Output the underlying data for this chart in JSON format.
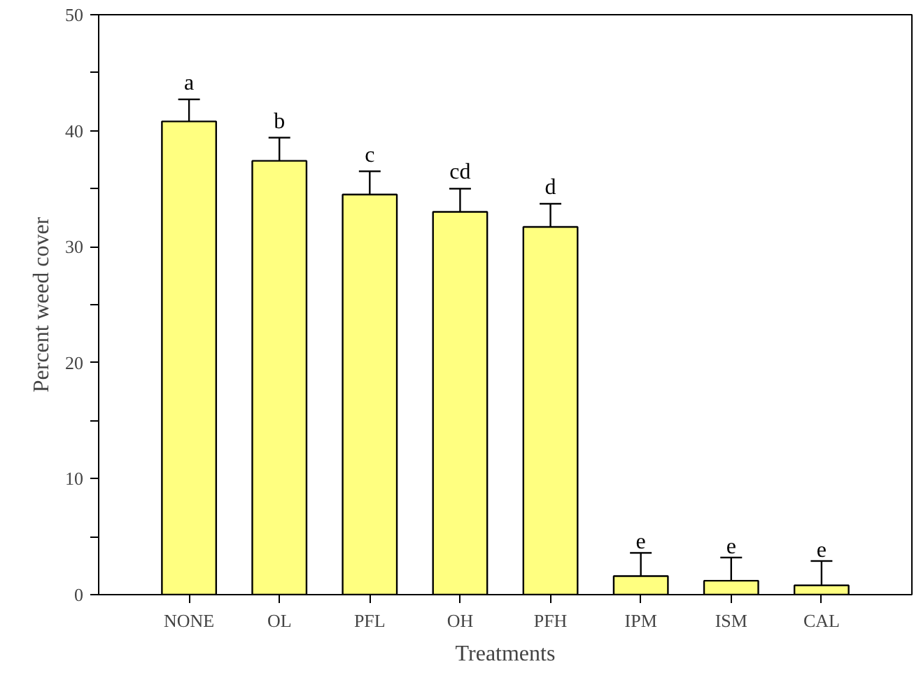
{
  "chart_data": {
    "type": "bar",
    "xlabel": "Treatments",
    "ylabel": "Percent weed cover",
    "categories": [
      "NONE",
      "OL",
      "PFL",
      "OH",
      "PFH",
      "IPM",
      "ISM",
      "CAL"
    ],
    "values": [
      40.8,
      37.4,
      34.5,
      33.0,
      31.7,
      1.6,
      1.2,
      0.8
    ],
    "errors": [
      [
        40.8,
        42.7
      ],
      [
        37.4,
        39.4
      ],
      [
        34.5,
        36.5
      ],
      [
        33.0,
        35.0
      ],
      [
        31.7,
        33.7
      ],
      [
        1.6,
        3.6
      ],
      [
        1.2,
        3.2
      ],
      [
        0.8,
        2.9
      ]
    ],
    "color": "#ffff80",
    "ylim": [
      0,
      50
    ],
    "yticks": [
      0,
      {
        "value": 5,
        "label": null
      },
      10,
      {
        "value": 15,
        "label": null
      },
      20,
      {
        "value": 25,
        "label": null
      },
      30,
      {
        "value": 35,
        "label": null
      },
      40,
      {
        "value": 45,
        "label": null
      },
      50
    ],
    "grid": false,
    "annotations": [
      "a",
      "b",
      "c",
      "cd",
      "d",
      "e",
      "e",
      "e"
    ]
  }
}
